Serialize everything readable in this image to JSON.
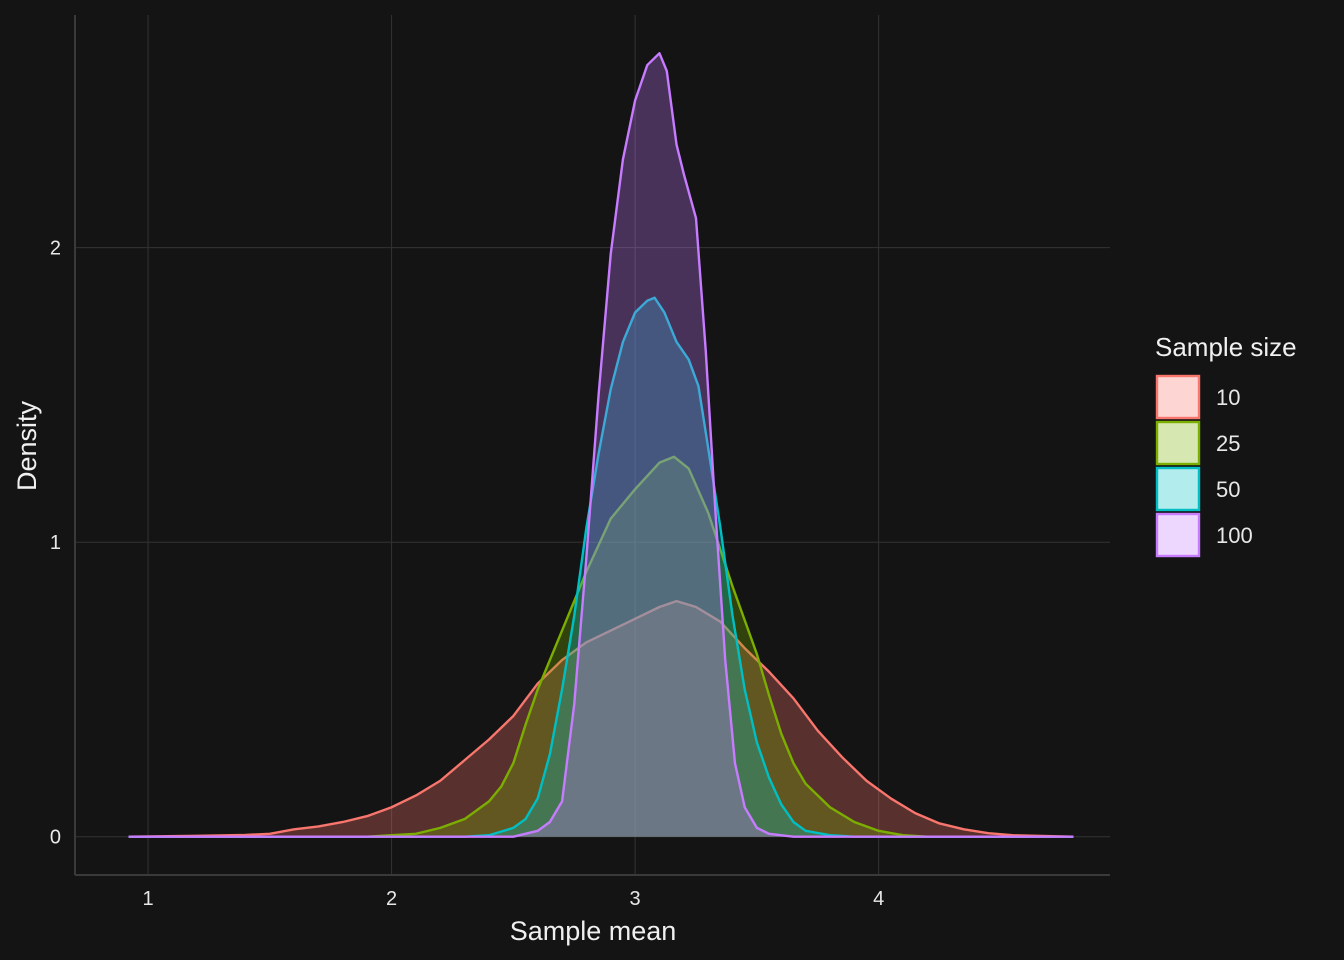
{
  "chart_data": {
    "type": "area",
    "title": "",
    "xlabel": "Sample mean",
    "ylabel": "Density",
    "xlim": [
      0.7,
      4.95
    ],
    "ylim": [
      -0.13,
      2.79
    ],
    "x_ticks": [
      1,
      2,
      3,
      4
    ],
    "y_ticks": [
      0,
      1,
      2
    ],
    "grid": true,
    "legend": {
      "title": "Sample size",
      "placement": "right"
    },
    "series": [
      {
        "name": "10",
        "color": "#F8766D",
        "points": [
          [
            0.92,
            0
          ],
          [
            1.2,
            0.003
          ],
          [
            1.4,
            0.006
          ],
          [
            1.5,
            0.01
          ],
          [
            1.6,
            0.025
          ],
          [
            1.7,
            0.035
          ],
          [
            1.8,
            0.05
          ],
          [
            1.9,
            0.07
          ],
          [
            2.0,
            0.1
          ],
          [
            2.1,
            0.14
          ],
          [
            2.2,
            0.19
          ],
          [
            2.3,
            0.26
          ],
          [
            2.4,
            0.33
          ],
          [
            2.5,
            0.41
          ],
          [
            2.6,
            0.52
          ],
          [
            2.7,
            0.6
          ],
          [
            2.8,
            0.66
          ],
          [
            2.9,
            0.7
          ],
          [
            3.0,
            0.74
          ],
          [
            3.1,
            0.78
          ],
          [
            3.17,
            0.8
          ],
          [
            3.25,
            0.78
          ],
          [
            3.35,
            0.73
          ],
          [
            3.45,
            0.64
          ],
          [
            3.55,
            0.56
          ],
          [
            3.65,
            0.47
          ],
          [
            3.75,
            0.36
          ],
          [
            3.85,
            0.27
          ],
          [
            3.95,
            0.19
          ],
          [
            4.05,
            0.13
          ],
          [
            4.15,
            0.08
          ],
          [
            4.25,
            0.045
          ],
          [
            4.35,
            0.025
          ],
          [
            4.45,
            0.012
          ],
          [
            4.55,
            0.005
          ],
          [
            4.8,
            0
          ]
        ]
      },
      {
        "name": "25",
        "color": "#7CAE00",
        "points": [
          [
            0.92,
            0
          ],
          [
            1.9,
            0
          ],
          [
            2.0,
            0.005
          ],
          [
            2.1,
            0.01
          ],
          [
            2.2,
            0.03
          ],
          [
            2.3,
            0.06
          ],
          [
            2.4,
            0.12
          ],
          [
            2.45,
            0.17
          ],
          [
            2.5,
            0.25
          ],
          [
            2.55,
            0.38
          ],
          [
            2.6,
            0.5
          ],
          [
            2.7,
            0.7
          ],
          [
            2.8,
            0.9
          ],
          [
            2.9,
            1.08
          ],
          [
            3.0,
            1.18
          ],
          [
            3.1,
            1.27
          ],
          [
            3.16,
            1.29
          ],
          [
            3.22,
            1.25
          ],
          [
            3.3,
            1.1
          ],
          [
            3.4,
            0.85
          ],
          [
            3.5,
            0.62
          ],
          [
            3.55,
            0.48
          ],
          [
            3.6,
            0.35
          ],
          [
            3.65,
            0.25
          ],
          [
            3.7,
            0.18
          ],
          [
            3.8,
            0.1
          ],
          [
            3.9,
            0.05
          ],
          [
            4.0,
            0.02
          ],
          [
            4.1,
            0.005
          ],
          [
            4.2,
            0
          ],
          [
            4.8,
            0
          ]
        ]
      },
      {
        "name": "50",
        "color": "#00BFC4",
        "points": [
          [
            0.92,
            0
          ],
          [
            2.3,
            0
          ],
          [
            2.4,
            0.005
          ],
          [
            2.5,
            0.03
          ],
          [
            2.55,
            0.06
          ],
          [
            2.6,
            0.13
          ],
          [
            2.65,
            0.28
          ],
          [
            2.7,
            0.5
          ],
          [
            2.75,
            0.75
          ],
          [
            2.8,
            1.05
          ],
          [
            2.85,
            1.3
          ],
          [
            2.9,
            1.52
          ],
          [
            2.95,
            1.68
          ],
          [
            3.0,
            1.78
          ],
          [
            3.05,
            1.82
          ],
          [
            3.08,
            1.83
          ],
          [
            3.12,
            1.78
          ],
          [
            3.17,
            1.68
          ],
          [
            3.22,
            1.62
          ],
          [
            3.26,
            1.53
          ],
          [
            3.3,
            1.32
          ],
          [
            3.35,
            1.05
          ],
          [
            3.4,
            0.75
          ],
          [
            3.45,
            0.5
          ],
          [
            3.5,
            0.32
          ],
          [
            3.55,
            0.2
          ],
          [
            3.6,
            0.11
          ],
          [
            3.65,
            0.05
          ],
          [
            3.7,
            0.02
          ],
          [
            3.8,
            0.005
          ],
          [
            3.9,
            0
          ],
          [
            4.8,
            0
          ]
        ]
      },
      {
        "name": "100",
        "color": "#C77CFF",
        "points": [
          [
            0.92,
            0
          ],
          [
            2.5,
            0
          ],
          [
            2.6,
            0.02
          ],
          [
            2.65,
            0.05
          ],
          [
            2.7,
            0.12
          ],
          [
            2.75,
            0.45
          ],
          [
            2.8,
            0.95
          ],
          [
            2.85,
            1.5
          ],
          [
            2.9,
            1.98
          ],
          [
            2.95,
            2.3
          ],
          [
            3.0,
            2.5
          ],
          [
            3.05,
            2.62
          ],
          [
            3.1,
            2.66
          ],
          [
            3.13,
            2.6
          ],
          [
            3.17,
            2.35
          ],
          [
            3.2,
            2.25
          ],
          [
            3.25,
            2.1
          ],
          [
            3.29,
            1.65
          ],
          [
            3.33,
            1.1
          ],
          [
            3.37,
            0.6
          ],
          [
            3.41,
            0.25
          ],
          [
            3.45,
            0.1
          ],
          [
            3.5,
            0.03
          ],
          [
            3.55,
            0.01
          ],
          [
            3.65,
            0
          ],
          [
            4.8,
            0
          ]
        ]
      }
    ]
  }
}
